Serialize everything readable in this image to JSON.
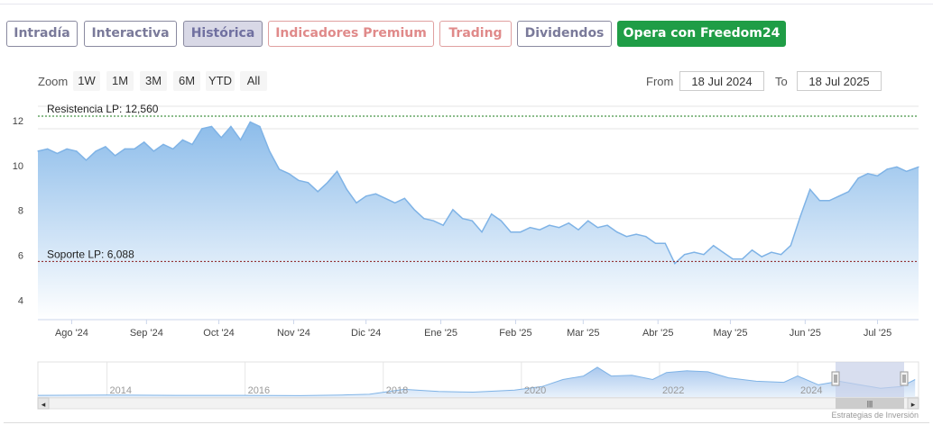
{
  "tabs": [
    {
      "label": "Intradía",
      "style": "normal"
    },
    {
      "label": "Interactiva",
      "style": "normal"
    },
    {
      "label": "Histórica",
      "style": "active"
    },
    {
      "label": "Indicadores Premium",
      "style": "premium"
    },
    {
      "label": "Trading",
      "style": "premium"
    },
    {
      "label": "Dividendos",
      "style": "normal"
    },
    {
      "label": "Opera con Freedom24",
      "style": "cta"
    }
  ],
  "range_selector": {
    "zoom_label": "Zoom",
    "buttons": [
      "1W",
      "1M",
      "3M",
      "6M",
      "YTD",
      "All"
    ],
    "from_label": "From",
    "from_value": "18 Jul 2024",
    "to_label": "To",
    "to_value": "18 Jul 2025"
  },
  "credit": "Estrategias de Inversión",
  "chart_data": {
    "type": "area",
    "title": "",
    "xlabel": "",
    "ylabel": "",
    "ylim": [
      3.5,
      13
    ],
    "yticks": [
      4,
      6,
      8,
      10,
      12
    ],
    "x_range": [
      "2024-07-18",
      "2025-07-18"
    ],
    "x_ticks": [
      {
        "date": "2024-08-01",
        "label": "Ago '24"
      },
      {
        "date": "2024-09-01",
        "label": "Sep '24"
      },
      {
        "date": "2024-10-01",
        "label": "Oct '24"
      },
      {
        "date": "2024-11-01",
        "label": "Nov '24"
      },
      {
        "date": "2024-12-01",
        "label": "Dic '24"
      },
      {
        "date": "2025-01-01",
        "label": "Ene '25"
      },
      {
        "date": "2025-02-01",
        "label": "Feb '25"
      },
      {
        "date": "2025-03-01",
        "label": "Mar '25"
      },
      {
        "date": "2025-04-01",
        "label": "Abr '25"
      },
      {
        "date": "2025-05-01",
        "label": "May '25"
      },
      {
        "date": "2025-06-01",
        "label": "Jun '25"
      },
      {
        "date": "2025-07-01",
        "label": "Jul '25"
      }
    ],
    "grid": true,
    "colors": {
      "line": "#7fb3e6",
      "fill_top": "#8cbcea",
      "fill_bottom": "#ffffff",
      "resistance": "#1a7a1a",
      "support": "#8a1a1a"
    },
    "series": [
      {
        "values": [
          [
            "2024-07-18",
            11.0
          ],
          [
            "2024-07-22",
            11.1
          ],
          [
            "2024-07-26",
            10.9
          ],
          [
            "2024-07-30",
            11.1
          ],
          [
            "2024-08-03",
            11.0
          ],
          [
            "2024-08-07",
            10.6
          ],
          [
            "2024-08-11",
            11.0
          ],
          [
            "2024-08-15",
            11.2
          ],
          [
            "2024-08-19",
            10.8
          ],
          [
            "2024-08-23",
            11.1
          ],
          [
            "2024-08-27",
            11.1
          ],
          [
            "2024-08-31",
            11.4
          ],
          [
            "2024-09-04",
            11.0
          ],
          [
            "2024-09-08",
            11.3
          ],
          [
            "2024-09-12",
            11.1
          ],
          [
            "2024-09-16",
            11.5
          ],
          [
            "2024-09-20",
            11.3
          ],
          [
            "2024-09-24",
            12.0
          ],
          [
            "2024-09-28",
            12.1
          ],
          [
            "2024-10-02",
            11.6
          ],
          [
            "2024-10-06",
            12.1
          ],
          [
            "2024-10-10",
            11.5
          ],
          [
            "2024-10-14",
            12.3
          ],
          [
            "2024-10-18",
            12.1
          ],
          [
            "2024-10-22",
            11.0
          ],
          [
            "2024-10-26",
            10.2
          ],
          [
            "2024-10-30",
            10.0
          ],
          [
            "2024-11-03",
            9.7
          ],
          [
            "2024-11-07",
            9.6
          ],
          [
            "2024-11-11",
            9.2
          ],
          [
            "2024-11-15",
            9.6
          ],
          [
            "2024-11-19",
            10.1
          ],
          [
            "2024-11-23",
            9.3
          ],
          [
            "2024-11-27",
            8.7
          ],
          [
            "2024-12-01",
            9.0
          ],
          [
            "2024-12-05",
            9.1
          ],
          [
            "2024-12-09",
            8.9
          ],
          [
            "2024-12-13",
            8.7
          ],
          [
            "2024-12-17",
            8.9
          ],
          [
            "2024-12-21",
            8.4
          ],
          [
            "2024-12-25",
            8.0
          ],
          [
            "2024-12-29",
            7.9
          ],
          [
            "2025-01-02",
            7.7
          ],
          [
            "2025-01-06",
            8.4
          ],
          [
            "2025-01-10",
            8.0
          ],
          [
            "2025-01-14",
            7.9
          ],
          [
            "2025-01-18",
            7.4
          ],
          [
            "2025-01-22",
            8.2
          ],
          [
            "2025-01-26",
            7.9
          ],
          [
            "2025-01-30",
            7.4
          ],
          [
            "2025-02-03",
            7.4
          ],
          [
            "2025-02-07",
            7.6
          ],
          [
            "2025-02-11",
            7.5
          ],
          [
            "2025-02-15",
            7.7
          ],
          [
            "2025-02-19",
            7.6
          ],
          [
            "2025-02-23",
            7.8
          ],
          [
            "2025-02-27",
            7.5
          ],
          [
            "2025-03-03",
            7.9
          ],
          [
            "2025-03-07",
            7.6
          ],
          [
            "2025-03-11",
            7.7
          ],
          [
            "2025-03-15",
            7.4
          ],
          [
            "2025-03-19",
            7.2
          ],
          [
            "2025-03-23",
            7.3
          ],
          [
            "2025-03-27",
            7.2
          ],
          [
            "2025-03-31",
            6.9
          ],
          [
            "2025-04-04",
            6.9
          ],
          [
            "2025-04-08",
            6.0
          ],
          [
            "2025-04-12",
            6.4
          ],
          [
            "2025-04-16",
            6.5
          ],
          [
            "2025-04-20",
            6.4
          ],
          [
            "2025-04-24",
            6.8
          ],
          [
            "2025-04-28",
            6.5
          ],
          [
            "2025-05-02",
            6.2
          ],
          [
            "2025-05-06",
            6.2
          ],
          [
            "2025-05-10",
            6.6
          ],
          [
            "2025-05-14",
            6.3
          ],
          [
            "2025-05-18",
            6.5
          ],
          [
            "2025-05-22",
            6.4
          ],
          [
            "2025-05-26",
            6.8
          ],
          [
            "2025-05-30",
            8.1
          ],
          [
            "2025-06-03",
            9.3
          ],
          [
            "2025-06-07",
            8.8
          ],
          [
            "2025-06-11",
            8.8
          ],
          [
            "2025-06-15",
            9.0
          ],
          [
            "2025-06-19",
            9.2
          ],
          [
            "2025-06-23",
            9.8
          ],
          [
            "2025-06-27",
            10.0
          ],
          [
            "2025-07-01",
            9.9
          ],
          [
            "2025-07-05",
            10.2
          ],
          [
            "2025-07-09",
            10.3
          ],
          [
            "2025-07-13",
            10.1
          ],
          [
            "2025-07-18",
            10.3
          ]
        ]
      }
    ],
    "annotations": [
      {
        "label": "Resistencia LP: 12,560",
        "y": 12.56
      },
      {
        "label": "Soporte LP: 6,088",
        "y": 6.088
      }
    ]
  },
  "navigator": {
    "labels": [
      "2014",
      "2016",
      "2018",
      "2020",
      "2022",
      "2024"
    ],
    "scroll_left": "◂",
    "scroll_right": "▸",
    "handle_grip": "|||",
    "colors": {
      "fill": "#a9c8ee",
      "line": "#7fb3e6",
      "mask": "#c8d0e8"
    },
    "profile": [
      [
        2013.0,
        0.05
      ],
      [
        2014.0,
        0.06
      ],
      [
        2015.0,
        0.05
      ],
      [
        2016.0,
        0.05
      ],
      [
        2016.8,
        0.04
      ],
      [
        2017.4,
        0.06
      ],
      [
        2017.8,
        0.08
      ],
      [
        2018.3,
        0.22
      ],
      [
        2018.8,
        0.16
      ],
      [
        2019.3,
        0.14
      ],
      [
        2019.9,
        0.2
      ],
      [
        2020.3,
        0.3
      ],
      [
        2020.6,
        0.5
      ],
      [
        2020.9,
        0.6
      ],
      [
        2021.1,
        0.85
      ],
      [
        2021.3,
        0.6
      ],
      [
        2021.6,
        0.62
      ],
      [
        2021.9,
        0.5
      ],
      [
        2022.1,
        0.7
      ],
      [
        2022.4,
        0.75
      ],
      [
        2022.7,
        0.72
      ],
      [
        2023.0,
        0.55
      ],
      [
        2023.4,
        0.45
      ],
      [
        2023.8,
        0.42
      ],
      [
        2024.0,
        0.6
      ],
      [
        2024.3,
        0.35
      ],
      [
        2024.6,
        0.45
      ],
      [
        2024.9,
        0.35
      ],
      [
        2025.2,
        0.25
      ],
      [
        2025.5,
        0.3
      ],
      [
        2025.7,
        0.5
      ]
    ]
  }
}
